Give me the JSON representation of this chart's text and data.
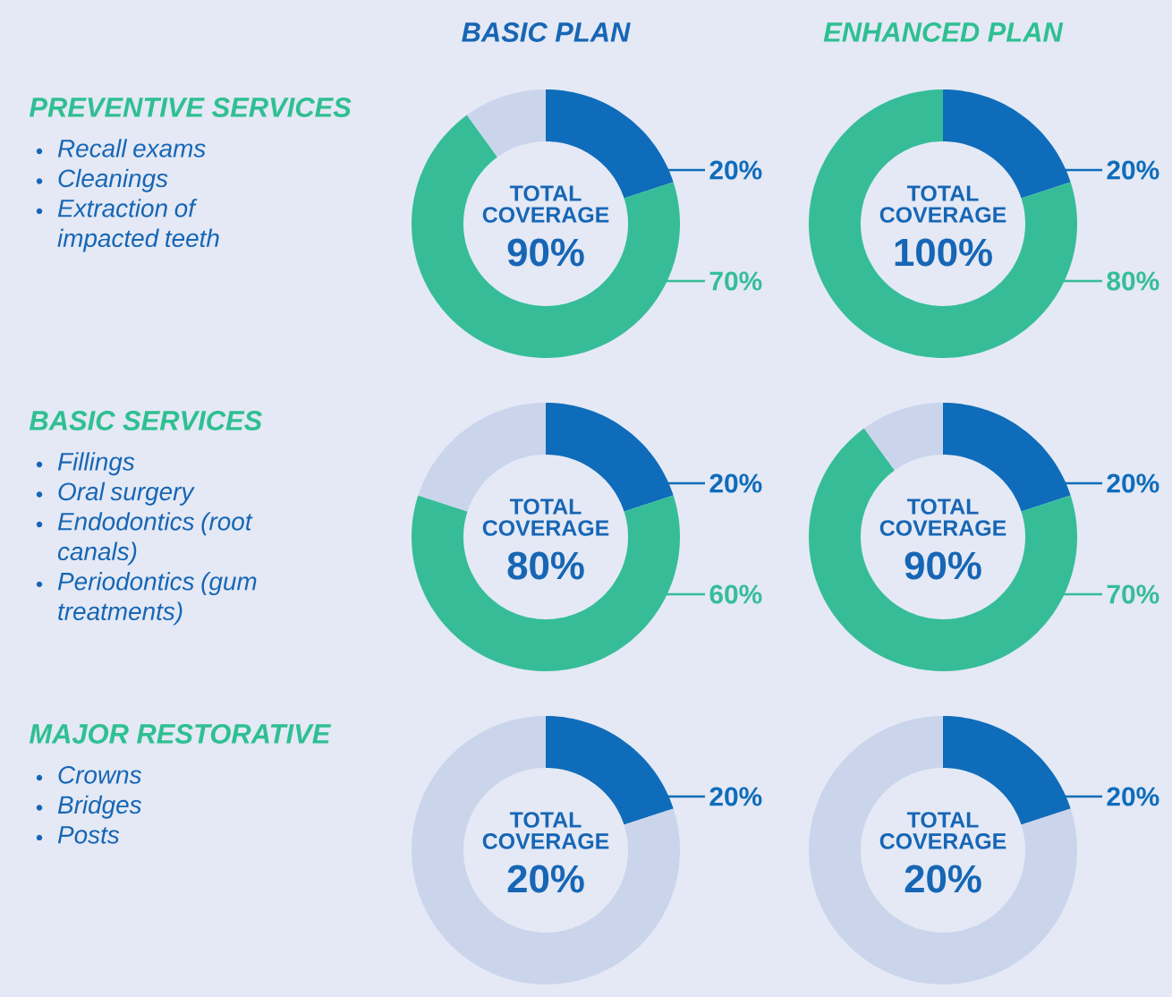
{
  "chart_data": [
    {
      "type": "other",
      "title": "PREVENTIVE SERVICES",
      "annotations": [
        "Recall exams",
        "Cleanings",
        "Extraction of impacted teeth"
      ]
    },
    {
      "type": "donut",
      "title": "BASIC PLAN",
      "categories": [
        null,
        null,
        null
      ],
      "values": [
        20,
        70,
        10
      ],
      "colors": [
        "#0f6cba",
        "#36bd98",
        "#cad5ec"
      ],
      "value_labels": [
        "20%",
        "70%",
        null
      ],
      "annotations": [
        "TOTAL COVERAGE",
        "90%"
      ]
    },
    {
      "type": "donut",
      "title": "ENHANCED PLAN",
      "categories": [
        null,
        null
      ],
      "values": [
        20,
        80
      ],
      "colors": [
        "#0f6cba",
        "#36bd98"
      ],
      "value_labels": [
        "20%",
        "80%"
      ],
      "annotations": [
        "TOTAL COVERAGE",
        "100%"
      ]
    },
    {
      "type": "other",
      "title": "BASIC SERVICES",
      "annotations": [
        "Fillings",
        "Oral surgery",
        "Endodontics (root canals)",
        "Periodontics (gum treatments)"
      ]
    },
    {
      "type": "donut",
      "categories": [
        null,
        null,
        null
      ],
      "values": [
        20,
        60,
        20
      ],
      "colors": [
        "#0f6cba",
        "#36bd98",
        "#cad5ec"
      ],
      "value_labels": [
        "20%",
        "60%",
        null
      ],
      "annotations": [
        "TOTAL COVERAGE",
        "80%"
      ]
    },
    {
      "type": "donut",
      "categories": [
        null,
        null,
        null
      ],
      "values": [
        20,
        70,
        10
      ],
      "colors": [
        "#0f6cba",
        "#36bd98",
        "#cad5ec"
      ],
      "value_labels": [
        "20%",
        "70%",
        null
      ],
      "annotations": [
        "TOTAL COVERAGE",
        "90%"
      ]
    },
    {
      "type": "other",
      "title": "MAJOR RESTORATIVE",
      "annotations": [
        "Crowns",
        "Bridges",
        "Posts"
      ]
    },
    {
      "type": "donut",
      "categories": [
        null,
        null
      ],
      "values": [
        20,
        80
      ],
      "colors": [
        "#0f6cba",
        "#cad5ec"
      ],
      "value_labels": [
        "20%",
        null
      ],
      "annotations": [
        "TOTAL COVERAGE",
        "20%"
      ]
    },
    {
      "type": "donut",
      "categories": [
        null,
        null
      ],
      "values": [
        20,
        80
      ],
      "colors": [
        "#0f6cba",
        "#cad5ec"
      ],
      "value_labels": [
        "20%",
        null
      ],
      "annotations": [
        "TOTAL COVERAGE",
        "20%"
      ]
    }
  ]
}
